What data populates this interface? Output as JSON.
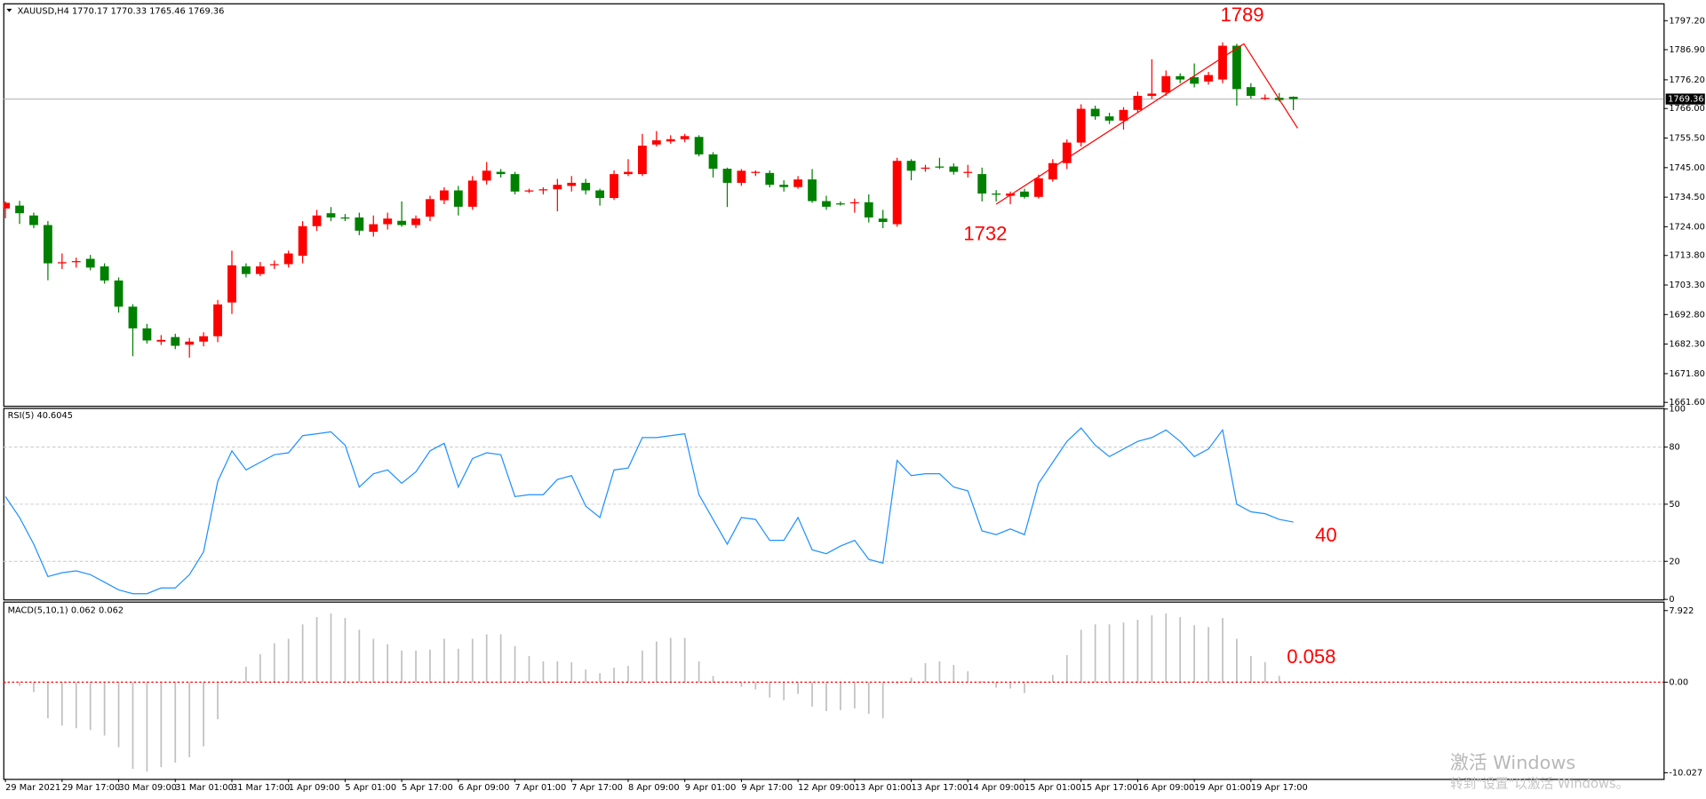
{
  "chart_data": [
    {
      "type": "candlestick",
      "title": "XAUUSD,H4  1770.17 1770.33 1765.46 1769.36",
      "up_color": "#ff0000",
      "down_color": "#008000",
      "categories": [
        "29 Mar 2021",
        null,
        null,
        null,
        "29 Mar 17:00",
        null,
        null,
        null,
        "30 Mar 09:00",
        null,
        null,
        null,
        "31 Mar 01:00",
        null,
        null,
        null,
        "31 Mar 17:00",
        null,
        null,
        null,
        "1 Apr 09:00",
        null,
        null,
        null,
        "5 Apr 01:00",
        null,
        null,
        null,
        "5 Apr 17:00",
        null,
        null,
        null,
        "6 Apr 09:00",
        null,
        null,
        null,
        "7 Apr 01:00",
        null,
        null,
        null,
        "7 Apr 17:00",
        null,
        null,
        null,
        "8 Apr 09:00",
        null,
        null,
        null,
        "9 Apr 01:00",
        null,
        null,
        null,
        "9 Apr 17:00",
        null,
        null,
        null,
        "12 Apr 09:00",
        null,
        null,
        null,
        "13 Apr 01:00",
        null,
        null,
        null,
        "13 Apr 17:00",
        null,
        null,
        null,
        "14 Apr 09:00",
        null,
        null,
        null,
        "15 Apr 01:00",
        null,
        null,
        null,
        "15 Apr 17:00",
        null,
        null,
        null,
        "16 Apr 09:00",
        null,
        null,
        null,
        "19 Apr 01:00",
        null,
        null,
        null,
        "19 Apr 17:00",
        null,
        null,
        null
      ],
      "open": [
        1730.5,
        1731.5,
        1728.0,
        1724.6,
        1711.0,
        1711.4,
        1712.6,
        1709.9,
        1704.9,
        1695.6,
        1687.9,
        1683.2,
        1684.8,
        1682.1,
        1683.2,
        1685.1,
        1697.1,
        1709.9,
        1707.2,
        1710.3,
        1710.7,
        1713.7,
        1724.2,
        1728.8,
        1727.3,
        1727.3,
        1722.2,
        1724.9,
        1726.1,
        1724.6,
        1727.6,
        1733.4,
        1736.9,
        1731.1,
        1740.4,
        1743.5,
        1742.7,
        1736.5,
        1736.9,
        1737.3,
        1738.5,
        1739.6,
        1736.9,
        1734.2,
        1742.7,
        1742.7,
        1753.2,
        1754.3,
        1755.1,
        1755.9,
        1749.7,
        1744.6,
        1739.6,
        1743.1,
        1743.1,
        1738.9,
        1738.1,
        1740.8,
        1733.1,
        1732.3,
        1732.3,
        1732.7,
        1726.9,
        1724.9,
        1747.4,
        1744.6,
        1745.4,
        1745.4,
        1743.1,
        1742.7,
        1735.8,
        1735.0,
        1736.5,
        1734.6,
        1740.8,
        1746.6,
        1753.9,
        1765.9,
        1763.2,
        1761.7,
        1765.5,
        1770.5,
        1771.7,
        1777.5,
        1777.1,
        1775.6,
        1776.3,
        1788.3,
        1773.6,
        1769.8,
        1769.8,
        1770.17
      ],
      "high": [
        1733.0,
        1733.2,
        1729.0,
        1726.0,
        1714.5,
        1713.0,
        1714.0,
        1711.0,
        1706.0,
        1696.5,
        1689.5,
        1685.5,
        1686.0,
        1684.5,
        1686.5,
        1698.0,
        1715.5,
        1711.0,
        1711.5,
        1712.0,
        1715.5,
        1726.0,
        1730.0,
        1731.0,
        1728.5,
        1729.0,
        1728.0,
        1729.0,
        1733.0,
        1728.0,
        1735.0,
        1738.0,
        1738.5,
        1742.0,
        1747.0,
        1744.5,
        1743.5,
        1737.5,
        1738.0,
        1741.0,
        1742.0,
        1741.0,
        1737.5,
        1744.0,
        1748.0,
        1757.0,
        1758.0,
        1756.5,
        1757.0,
        1756.5,
        1750.5,
        1745.0,
        1744.5,
        1744.0,
        1744.0,
        1740.5,
        1742.0,
        1744.5,
        1735.0,
        1733.0,
        1734.0,
        1735.5,
        1730.0,
        1748.5,
        1748.0,
        1746.0,
        1748.5,
        1746.5,
        1746.0,
        1745.0,
        1737.0,
        1736.5,
        1737.5,
        1742.5,
        1748.0,
        1755.0,
        1767.5,
        1767.0,
        1764.5,
        1766.5,
        1772.0,
        1783.5,
        1779.5,
        1778.5,
        1782.0,
        1779.0,
        1789.5,
        1789.0,
        1775.0,
        1771.0,
        1771.5,
        1770.33
      ],
      "low": [
        1727.0,
        1725.0,
        1723.5,
        1705.0,
        1709.0,
        1709.5,
        1708.5,
        1703.8,
        1693.5,
        1678.0,
        1682.5,
        1682.0,
        1680.5,
        1677.5,
        1681.5,
        1683.0,
        1693.0,
        1706.0,
        1706.5,
        1709.0,
        1709.5,
        1711.0,
        1722.5,
        1726.0,
        1726.0,
        1721.0,
        1720.5,
        1723.0,
        1724.0,
        1723.5,
        1726.0,
        1732.0,
        1728.0,
        1730.0,
        1739.0,
        1741.5,
        1735.5,
        1736.0,
        1735.5,
        1729.5,
        1736.5,
        1735.5,
        1731.5,
        1733.5,
        1742.0,
        1742.0,
        1752.5,
        1753.5,
        1754.0,
        1749.0,
        1741.5,
        1731.0,
        1738.5,
        1742.0,
        1738.0,
        1736.5,
        1737.5,
        1732.5,
        1730.0,
        1731.5,
        1729.0,
        1725.5,
        1723.5,
        1724.0,
        1740.5,
        1743.5,
        1744.5,
        1742.5,
        1741.5,
        1733.0,
        1733.0,
        1732.0,
        1734.0,
        1734.0,
        1740.0,
        1744.5,
        1752.5,
        1762.0,
        1760.5,
        1758.5,
        1764.5,
        1769.5,
        1770.5,
        1775.0,
        1773.5,
        1774.5,
        1775.0,
        1767.0,
        1769.5,
        1769.0,
        1768.5,
        1765.46
      ],
      "close": [
        1732.5,
        1728.8,
        1724.6,
        1711.0,
        1711.4,
        1711.8,
        1709.5,
        1704.9,
        1695.6,
        1687.9,
        1683.6,
        1683.8,
        1681.7,
        1683.2,
        1685.1,
        1696.4,
        1710.3,
        1707.2,
        1709.9,
        1710.7,
        1714.5,
        1724.2,
        1728.0,
        1727.3,
        1726.9,
        1722.6,
        1724.9,
        1726.9,
        1724.6,
        1726.9,
        1733.8,
        1736.9,
        1731.1,
        1740.4,
        1743.9,
        1742.7,
        1736.5,
        1736.9,
        1737.3,
        1738.9,
        1739.6,
        1736.9,
        1734.2,
        1742.7,
        1743.5,
        1752.8,
        1754.7,
        1755.1,
        1756.2,
        1749.7,
        1744.6,
        1739.6,
        1743.9,
        1743.5,
        1738.9,
        1738.1,
        1740.8,
        1733.1,
        1731.1,
        1731.9,
        1732.7,
        1727.3,
        1725.7,
        1747.4,
        1743.9,
        1745.0,
        1745.0,
        1743.5,
        1743.5,
        1735.8,
        1735.4,
        1735.8,
        1734.6,
        1741.2,
        1746.6,
        1753.9,
        1765.9,
        1763.2,
        1761.7,
        1765.5,
        1770.5,
        1771.3,
        1777.5,
        1776.3,
        1774.8,
        1777.9,
        1788.3,
        1772.9,
        1770.5,
        1769.8,
        1769.0,
        1769.36
      ],
      "ylim": [
        1660.4,
        1803.0
      ],
      "yticks": [
        {
          "value": 1797.2,
          "label": "1797.20"
        },
        {
          "value": 1786.9,
          "label": "1786.90"
        },
        {
          "value": 1776.2,
          "label": "1776.20"
        },
        {
          "value": 1766.0,
          "label": "1766.00"
        },
        {
          "value": 1755.5,
          "label": "1755.50"
        },
        {
          "value": 1745.0,
          "label": "1745.00"
        },
        {
          "value": 1734.5,
          "label": "1734.50"
        },
        {
          "value": 1724.0,
          "label": "1724.00"
        },
        {
          "value": 1713.8,
          "label": "1713.80"
        },
        {
          "value": 1703.3,
          "label": "1703.30"
        },
        {
          "value": 1692.8,
          "label": "1692.80"
        },
        {
          "value": 1682.3,
          "label": "1682.30"
        },
        {
          "value": 1671.8,
          "label": "1671.80"
        },
        {
          "value": 1661.6,
          "label": "1661.60"
        }
      ],
      "trend_line": {
        "color": "#ff0000",
        "values": [
          1732,
          1789,
          1759
        ]
      },
      "annotations": [
        1789,
        1732
      ]
    },
    {
      "type": "line",
      "title": "RSI(5) 40.6045",
      "color": "#1e90ff",
      "values": [
        54,
        43,
        29,
        12,
        14,
        15,
        13,
        9,
        5,
        3,
        3,
        6,
        6,
        13,
        25,
        62,
        78,
        68,
        72,
        76,
        77,
        86,
        87,
        88,
        81,
        59,
        66,
        68,
        61,
        67,
        78,
        82,
        59,
        74,
        77,
        76,
        54,
        55,
        55,
        63,
        65,
        49,
        43,
        68,
        69,
        85,
        85,
        86,
        87,
        55,
        42,
        29,
        43,
        42,
        31,
        31,
        43,
        26,
        24,
        28,
        31,
        21,
        19,
        73,
        65,
        66,
        66,
        59,
        57,
        36,
        34,
        37,
        34,
        61,
        72,
        83,
        90,
        81,
        75,
        79,
        83,
        85,
        89,
        83,
        75,
        79,
        89,
        50,
        46,
        45,
        42,
        40.6045
      ],
      "ylim": [
        0,
        100
      ],
      "yticks": [
        100,
        80,
        50,
        20,
        0
      ],
      "grid": [
        80,
        50,
        20
      ],
      "annotations": [
        40
      ]
    },
    {
      "type": "histogram",
      "title": "MACD(5,10,1) 0.062 0.062",
      "color": "#c0c0c0",
      "zero_line_color": "#ff0000",
      "values": [
        -0.2,
        -0.4,
        -1.1,
        -4.0,
        -4.8,
        -5.1,
        -5.3,
        -5.9,
        -7.2,
        -9.6,
        -9.9,
        -9.4,
        -8.9,
        -8.3,
        -7.1,
        -4.1,
        0.2,
        1.7,
        3.1,
        4.3,
        4.8,
        6.4,
        7.2,
        7.6,
        7.1,
        5.8,
        4.8,
        4.2,
        3.5,
        3.5,
        3.6,
        4.8,
        3.7,
        4.8,
        5.3,
        5.3,
        4.0,
        2.9,
        2.3,
        2.3,
        2.2,
        1.4,
        1.0,
        1.6,
        1.8,
        3.5,
        4.5,
        4.9,
        4.9,
        2.3,
        0.7,
        0.1,
        -0.5,
        -0.8,
        -1.7,
        -2.0,
        -1.3,
        -2.7,
        -3.2,
        -3.1,
        -2.9,
        -3.5,
        -4.0,
        -0.2,
        0.5,
        2.1,
        2.3,
        1.9,
        1.2,
        0.1,
        -0.6,
        -0.7,
        -1.2,
        -0.1,
        0.8,
        3.0,
        5.8,
        6.4,
        6.4,
        6.6,
        6.9,
        7.4,
        7.6,
        7.2,
        6.3,
        6.1,
        7.1,
        4.8,
        2.9,
        2.2,
        0.7,
        0.062
      ],
      "ylim": [
        -10.7,
        8.8
      ],
      "yticks": [
        7.922,
        {
          "value": 0,
          "label": "0.00"
        },
        -10.027
      ],
      "annotations": [
        0.058
      ]
    }
  ],
  "watermark": {
    "title": "激活 Windows",
    "subtitle": "转到\"设置\"以激活 Windows。"
  }
}
